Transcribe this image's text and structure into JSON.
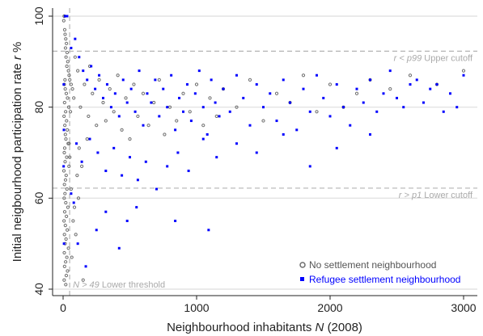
{
  "colors": {
    "no_settlement": "#6e6e6e",
    "refugee_settlement": "#0000ff",
    "reference_line": "#b4b4b4",
    "gridline": "#dedede"
  },
  "chart_data": {
    "type": "scatter",
    "xlabel": "Neighbourhood inhabitants",
    "xlabel_var": "N",
    "xlabel_suffix": "(2008)",
    "ylabel": "Initial neigbourhood participation rate",
    "ylabel_var": "r",
    "ylabel_suffix": "%",
    "xlim": [
      0,
      3000
    ],
    "ylim": [
      40,
      100
    ],
    "x_ticks": [
      0,
      1000,
      2000,
      3000
    ],
    "y_ticks": [
      40,
      60,
      80,
      100
    ],
    "grid": "horizontal",
    "legend_position": "bottom-right",
    "reference_lines": [
      {
        "orientation": "horizontal",
        "value": 92.3,
        "label_var": "r",
        "label_op": "<",
        "label_pct": "p99",
        "label_text": "Upper cutoff"
      },
      {
        "orientation": "horizontal",
        "value": 62.2,
        "label_var": "r",
        "label_op": ">",
        "label_pct": "p1",
        "label_text": "Lower cutoff"
      },
      {
        "orientation": "vertical",
        "value": 49,
        "label_var": "N",
        "label_op": ">",
        "label_num": "49",
        "label_text": "Lower threshold"
      }
    ],
    "series": [
      {
        "name": "No settlement neighbourhood",
        "marker": "circle",
        "values": [
          [
            8,
            100
          ],
          [
            10,
            100
          ],
          [
            5,
            99
          ],
          [
            12,
            97
          ],
          [
            15,
            96
          ],
          [
            20,
            95
          ],
          [
            25,
            94
          ],
          [
            18,
            93
          ],
          [
            30,
            92
          ],
          [
            22,
            91
          ],
          [
            35,
            90
          ],
          [
            28,
            89
          ],
          [
            40,
            88
          ],
          [
            45,
            87
          ],
          [
            50,
            86
          ],
          [
            14,
            86
          ],
          [
            9,
            85
          ],
          [
            60,
            85
          ],
          [
            16,
            84
          ],
          [
            24,
            83
          ],
          [
            70,
            84
          ],
          [
            33,
            82
          ],
          [
            11,
            81
          ],
          [
            80,
            82
          ],
          [
            42,
            80
          ],
          [
            19,
            79
          ],
          [
            7,
            78
          ],
          [
            26,
            77
          ],
          [
            55,
            79
          ],
          [
            13,
            76
          ],
          [
            31,
            75
          ],
          [
            17,
            74
          ],
          [
            21,
            73
          ],
          [
            38,
            72
          ],
          [
            12,
            71
          ],
          [
            9,
            70
          ],
          [
            27,
            69
          ],
          [
            15,
            68
          ],
          [
            44,
            67
          ],
          [
            6,
            66
          ],
          [
            23,
            65
          ],
          [
            18,
            64
          ],
          [
            10,
            63
          ],
          [
            29,
            62
          ],
          [
            14,
            61
          ],
          [
            8,
            60
          ],
          [
            20,
            59
          ],
          [
            36,
            58
          ],
          [
            12,
            57
          ],
          [
            25,
            56
          ],
          [
            7,
            55
          ],
          [
            17,
            54
          ],
          [
            31,
            53
          ],
          [
            10,
            52
          ],
          [
            22,
            51
          ],
          [
            15,
            50
          ],
          [
            40,
            49
          ],
          [
            9,
            48
          ],
          [
            28,
            47
          ],
          [
            19,
            46
          ],
          [
            11,
            45
          ],
          [
            33,
            44
          ],
          [
            24,
            43
          ],
          [
            8,
            42
          ],
          [
            20,
            41
          ],
          [
            150,
            42
          ],
          [
            110,
            88
          ],
          [
            90,
            91
          ],
          [
            130,
            80
          ],
          [
            160,
            85
          ],
          [
            190,
            78
          ],
          [
            220,
            83
          ],
          [
            250,
            76
          ],
          [
            120,
            71
          ],
          [
            140,
            67
          ],
          [
            180,
            73
          ],
          [
            200,
            89
          ],
          [
            270,
            86
          ],
          [
            300,
            81
          ],
          [
            320,
            77
          ],
          [
            350,
            84
          ],
          [
            380,
            79
          ],
          [
            410,
            87
          ],
          [
            440,
            75
          ],
          [
            470,
            82
          ],
          [
            500,
            73
          ],
          [
            530,
            85
          ],
          [
            560,
            78
          ],
          [
            600,
            83
          ],
          [
            640,
            76
          ],
          [
            680,
            81
          ],
          [
            720,
            86
          ],
          [
            760,
            74
          ],
          [
            800,
            80
          ],
          [
            850,
            77
          ],
          [
            900,
            83
          ],
          [
            950,
            79
          ],
          [
            1000,
            85
          ],
          [
            1050,
            76
          ],
          [
            1100,
            82
          ],
          [
            1150,
            78
          ],
          [
            1200,
            84
          ],
          [
            1300,
            80
          ],
          [
            1400,
            86
          ],
          [
            1500,
            77
          ],
          [
            1600,
            83
          ],
          [
            1700,
            81
          ],
          [
            1800,
            87
          ],
          [
            1900,
            79
          ],
          [
            2000,
            85
          ],
          [
            2100,
            80
          ],
          [
            2200,
            83
          ],
          [
            2300,
            86
          ],
          [
            2450,
            84
          ],
          [
            2600,
            87
          ],
          [
            2800,
            85
          ],
          [
            3000,
            88
          ],
          [
            60,
            62
          ],
          [
            85,
            58
          ],
          [
            105,
            65
          ],
          [
            75,
            55
          ],
          [
            50,
            69
          ],
          [
            65,
            47
          ],
          [
            95,
            52
          ],
          [
            45,
            72
          ],
          [
            115,
            60
          ]
        ]
      },
      {
        "name": "Refugee settlement neighbourhood",
        "marker": "square",
        "values": [
          [
            30,
            100
          ],
          [
            60,
            93
          ],
          [
            90,
            95
          ],
          [
            120,
            91
          ],
          [
            150,
            88
          ],
          [
            180,
            86
          ],
          [
            210,
            89
          ],
          [
            240,
            84
          ],
          [
            270,
            87
          ],
          [
            300,
            82
          ],
          [
            330,
            85
          ],
          [
            360,
            80
          ],
          [
            390,
            83
          ],
          [
            420,
            78
          ],
          [
            450,
            86
          ],
          [
            480,
            81
          ],
          [
            510,
            84
          ],
          [
            540,
            79
          ],
          [
            570,
            88
          ],
          [
            600,
            76
          ],
          [
            630,
            83
          ],
          [
            660,
            81
          ],
          [
            690,
            86
          ],
          [
            720,
            78
          ],
          [
            750,
            84
          ],
          [
            780,
            80
          ],
          [
            810,
            87
          ],
          [
            840,
            75
          ],
          [
            870,
            82
          ],
          [
            900,
            79
          ],
          [
            930,
            85
          ],
          [
            960,
            77
          ],
          [
            990,
            83
          ],
          [
            1020,
            88
          ],
          [
            1050,
            80
          ],
          [
            1080,
            74
          ],
          [
            1110,
            86
          ],
          [
            1140,
            81
          ],
          [
            1170,
            78
          ],
          [
            1200,
            84
          ],
          [
            1250,
            79
          ],
          [
            1300,
            87
          ],
          [
            1350,
            82
          ],
          [
            1400,
            76
          ],
          [
            1450,
            85
          ],
          [
            1500,
            80
          ],
          [
            1550,
            83
          ],
          [
            1600,
            77
          ],
          [
            1650,
            86
          ],
          [
            1700,
            81
          ],
          [
            1750,
            75
          ],
          [
            1800,
            84
          ],
          [
            1850,
            79
          ],
          [
            1900,
            87
          ],
          [
            1950,
            82
          ],
          [
            2000,
            78
          ],
          [
            2050,
            85
          ],
          [
            2100,
            80
          ],
          [
            2150,
            76
          ],
          [
            2200,
            84
          ],
          [
            2250,
            81
          ],
          [
            2300,
            86
          ],
          [
            2350,
            79
          ],
          [
            2400,
            83
          ],
          [
            2450,
            88
          ],
          [
            2500,
            82
          ],
          [
            2550,
            80
          ],
          [
            2600,
            85
          ],
          [
            2650,
            86
          ],
          [
            2700,
            81
          ],
          [
            2750,
            84
          ],
          [
            2800,
            85
          ],
          [
            2850,
            79
          ],
          [
            2900,
            83
          ],
          [
            2950,
            80
          ],
          [
            3000,
            87
          ],
          [
            100,
            72
          ],
          [
            140,
            68
          ],
          [
            200,
            73
          ],
          [
            260,
            70
          ],
          [
            320,
            66
          ],
          [
            380,
            71
          ],
          [
            440,
            65
          ],
          [
            500,
            69
          ],
          [
            560,
            64
          ],
          [
            620,
            68
          ],
          [
            700,
            62
          ],
          [
            780,
            67
          ],
          [
            860,
            70
          ],
          [
            940,
            66
          ],
          [
            1050,
            73
          ],
          [
            1150,
            69
          ],
          [
            1300,
            72
          ],
          [
            1450,
            70
          ],
          [
            1650,
            74
          ],
          [
            1850,
            67
          ],
          [
            2050,
            71
          ],
          [
            2300,
            74
          ],
          [
            110,
            50
          ],
          [
            170,
            45
          ],
          [
            250,
            53
          ],
          [
            320,
            57
          ],
          [
            420,
            49
          ],
          [
            480,
            55
          ],
          [
            550,
            58
          ],
          [
            840,
            55
          ],
          [
            1090,
            53
          ],
          [
            60,
            61
          ],
          [
            80,
            59
          ],
          [
            15,
            100
          ],
          [
            5,
            85
          ],
          [
            6,
            75
          ],
          [
            4,
            67
          ],
          [
            7,
            50
          ]
        ]
      }
    ]
  }
}
